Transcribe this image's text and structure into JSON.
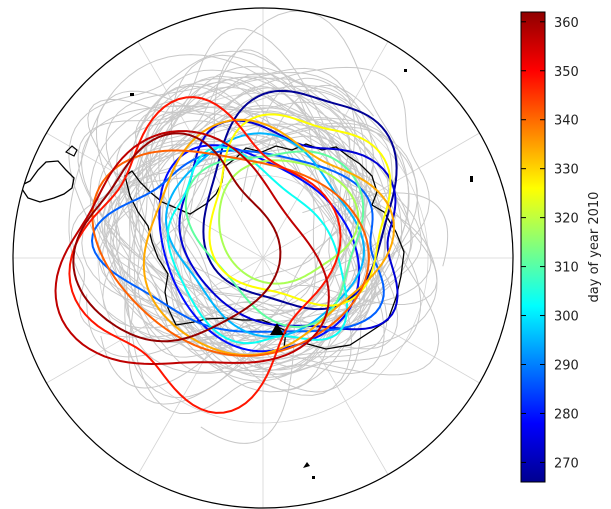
{
  "figure": {
    "projection": "south-polar-stereographic",
    "colorbar": {
      "label": "day of year 2010",
      "min": 266,
      "max": 362,
      "ticks": [
        "270",
        "280",
        "290",
        "300",
        "310",
        "320",
        "330",
        "340",
        "350",
        "360"
      ],
      "colormap": "jet",
      "placement": "right"
    },
    "background_trajectories": {
      "color": "#c8c8c8"
    },
    "launch_marker": {
      "symbol": "filled triangle",
      "color": "#000000"
    },
    "highlighted_trajectory_days": [
      268,
      274,
      279,
      287,
      295,
      303,
      311,
      318,
      326,
      334,
      341,
      348,
      356,
      360
    ]
  }
}
